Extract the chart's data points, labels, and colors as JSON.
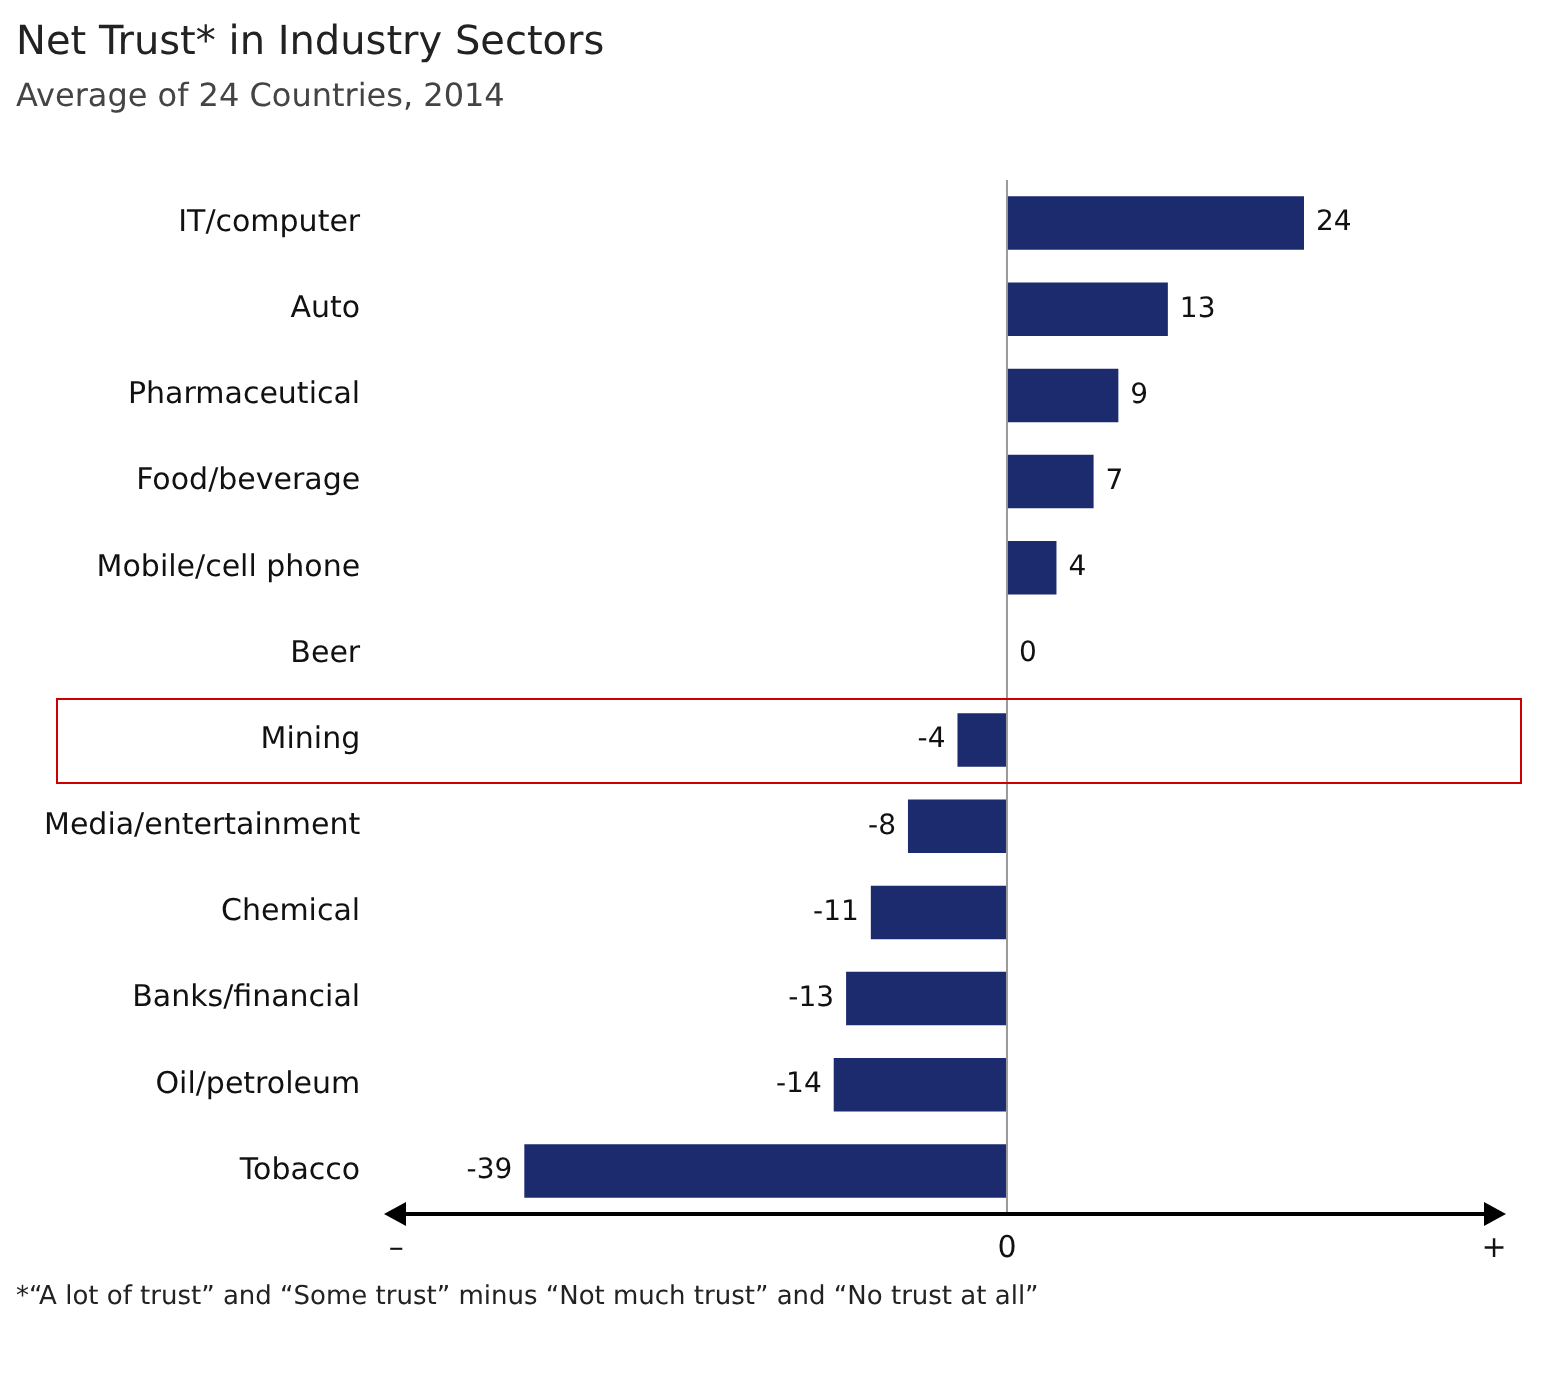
{
  "chart_data": {
    "type": "bar",
    "orientation": "horizontal",
    "title": "Net Trust* in Industry Sectors",
    "subtitle": "Average of 24 Countries, 2014",
    "categories": [
      "IT/computer",
      "Auto",
      "Pharmaceutical",
      "Food/beverage",
      "Mobile/cell phone",
      "Beer",
      "Mining",
      "Media/entertainment",
      "Chemical",
      "Banks/financial",
      "Oil/petroleum",
      "Tobacco"
    ],
    "values": [
      24,
      13,
      9,
      7,
      4,
      0,
      -4,
      -8,
      -11,
      -13,
      -14,
      -39
    ],
    "color": "#1c2a6e",
    "data_labels": true,
    "tick_labels": "y",
    "ref_lines": [
      {
        "axis": "x",
        "value": 0,
        "label": "0",
        "color": "#999999"
      }
    ],
    "grid": false,
    "legend": false,
    "annotations": [
      "–",
      "+",
      "*“A lot of trust” and “Some trust” minus “Not much trust” and “No trust at all”"
    ]
  }
}
